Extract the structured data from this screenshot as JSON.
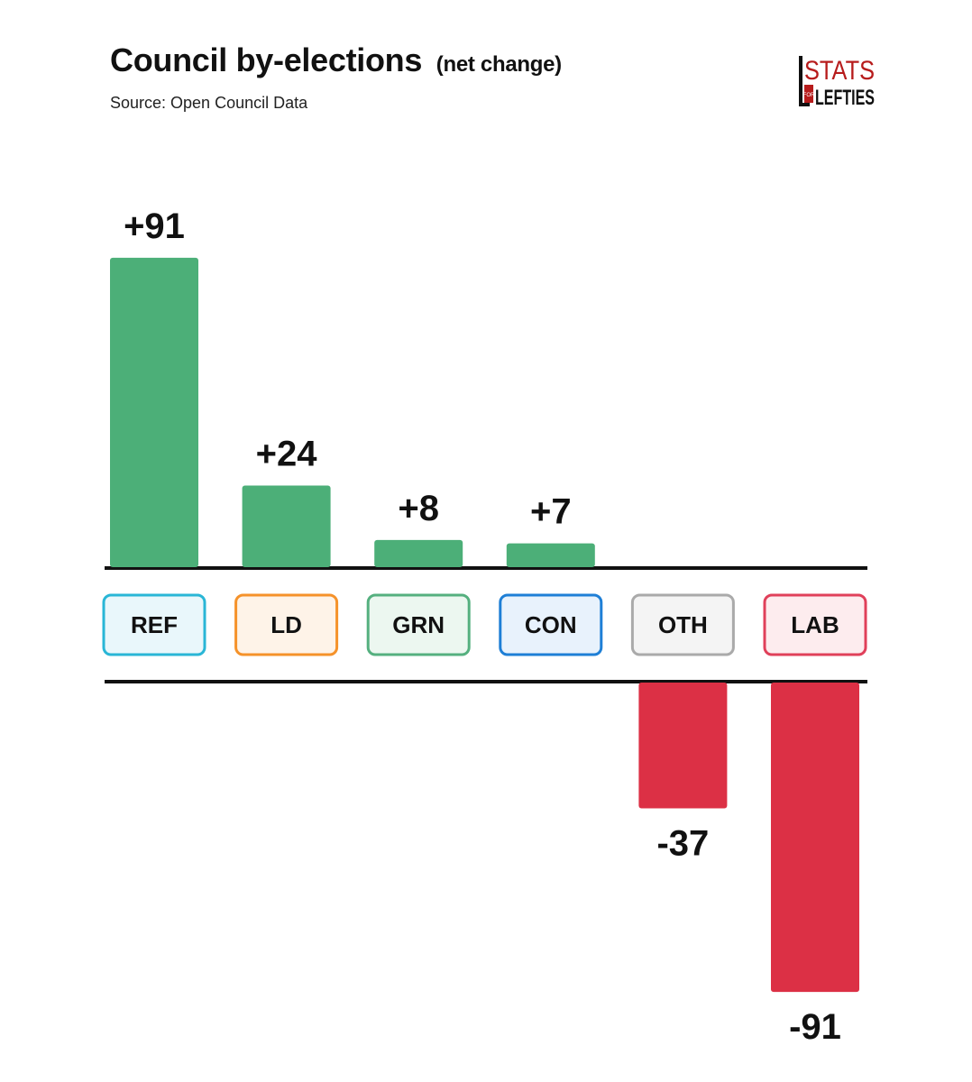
{
  "header": {
    "title": "Council by-elections",
    "title_suffix": "(net change)",
    "source": "Source: Open Council Data"
  },
  "logo": {
    "line1": "STATS",
    "line2": "LEFTIES",
    "small": "FOR"
  },
  "colors": {
    "gain": "#4caf78",
    "loss": "#dc3045"
  },
  "chart_data": {
    "type": "bar",
    "title": "Council by-elections (net change)",
    "categories": [
      "REF",
      "LD",
      "GRN",
      "CON",
      "OTH",
      "LAB"
    ],
    "values": [
      91,
      24,
      8,
      7,
      -37,
      -91
    ],
    "value_labels": [
      "+91",
      "+24",
      "+8",
      "+7",
      "-37",
      "-91"
    ],
    "category_colors": [
      {
        "border": "#29b6d6",
        "fill": "#e9f7fb"
      },
      {
        "border": "#f5922a",
        "fill": "#fef3e8"
      },
      {
        "border": "#55b07f",
        "fill": "#ecf7f0"
      },
      {
        "border": "#1e7fd6",
        "fill": "#e8f2fc"
      },
      {
        "border": "#aaaaaa",
        "fill": "#f4f4f4"
      },
      {
        "border": "#e0405a",
        "fill": "#fdecee"
      }
    ],
    "xlabel": "",
    "ylabel": "",
    "ylim": [
      -91,
      91
    ],
    "grid": false,
    "legend": "none"
  }
}
